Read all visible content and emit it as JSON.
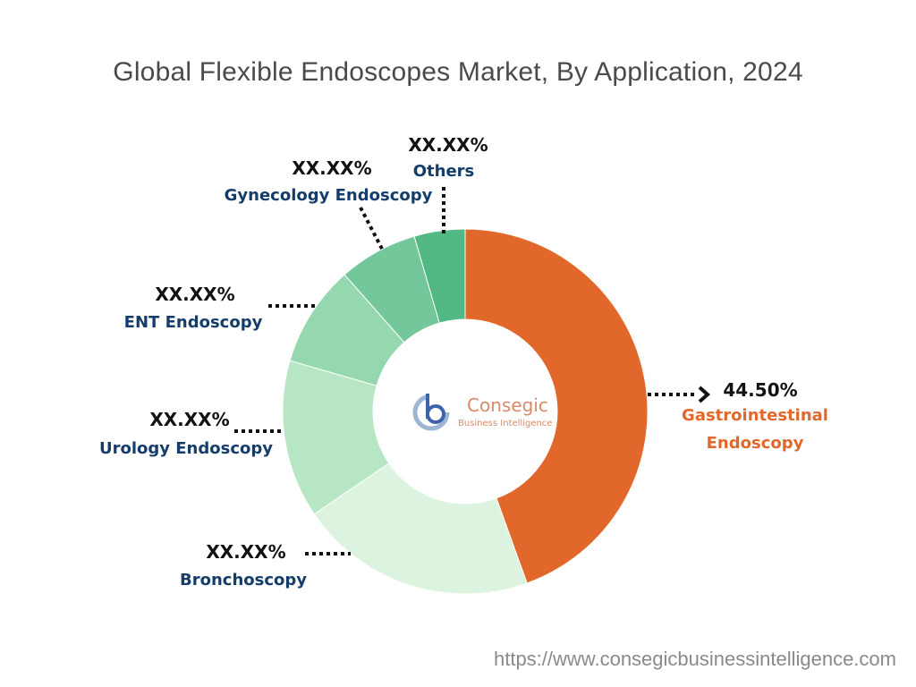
{
  "chart_data": {
    "type": "pie",
    "title": "Global Flexible Endoscopes Market, By Application, 2024",
    "style": "donut",
    "slices": [
      {
        "label": "Gastrointestinal Endoscopy",
        "label_lines": [
          "Gastrointestinal",
          "Endoscopy"
        ],
        "value": 44.5,
        "value_label": "44.50%",
        "color": "#e2672a",
        "label_color": "#e2672a"
      },
      {
        "label": "Bronchoscopy",
        "label_lines": [
          "Bronchoscopy"
        ],
        "value": 21.0,
        "value_label": "XX.XX%",
        "color": "#dbf3df",
        "label_color": "#143d6b"
      },
      {
        "label": "Urology Endoscopy",
        "label_lines": [
          "Urology Endoscopy"
        ],
        "value": 14.0,
        "value_label": "XX.XX%",
        "color": "#b7e6c4",
        "label_color": "#143d6b"
      },
      {
        "label": "ENT Endoscopy",
        "label_lines": [
          "ENT Endoscopy"
        ],
        "value": 9.0,
        "value_label": "XX.XX%",
        "color": "#95d7af",
        "label_color": "#143d6b"
      },
      {
        "label": "Gynecology Endoscopy",
        "label_lines": [
          "Gynecology Endoscopy"
        ],
        "value": 7.0,
        "value_label": "XX.XX%",
        "color": "#74c79a",
        "label_color": "#143d6b"
      },
      {
        "label": "Others",
        "label_lines": [
          "Others"
        ],
        "value": 4.5,
        "value_label": "XX.XX%",
        "color": "#52b884",
        "label_color": "#143d6b"
      }
    ]
  },
  "logo": {
    "line1": "Consegic",
    "line2": "Business Intelligence"
  },
  "source_url": "https://www.consegicbusinessintelligence.com"
}
